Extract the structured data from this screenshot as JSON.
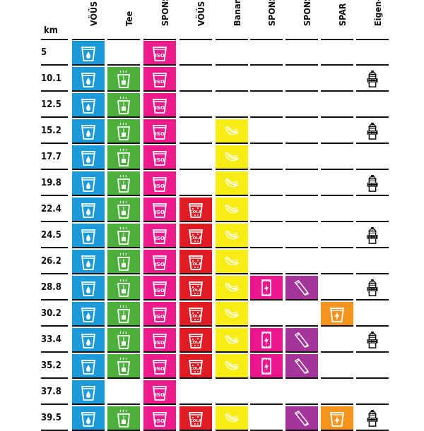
{
  "km_header": "km",
  "columns": [
    {
      "key": "wasser",
      "label": "VÖÜS Wasser",
      "color": "#1a9ad9",
      "icon": "water-cup-icon"
    },
    {
      "key": "tee",
      "label": "Tee",
      "color": "#4caf3c",
      "icon": "tea-cup-icon"
    },
    {
      "key": "iso",
      "label": "SPONSER ISO",
      "color": "#ee1b8d",
      "icon": "iso-cup-icon"
    },
    {
      "key": "cola",
      "label": "VÖÜS Cola",
      "color": "#e01b24",
      "icon": "cola-cup-icon"
    },
    {
      "key": "bananen",
      "label": "Bananen",
      "color": "#f7ed14",
      "icon": "banana-icon"
    },
    {
      "key": "riegel",
      "label": "SPONSOR Energieriegel",
      "color": "#ec168c",
      "icon": "energy-bar-icon"
    },
    {
      "key": "gel",
      "label": "SPONSOR Gel",
      "color": "#a5359b",
      "icon": "gel-tube-icon"
    },
    {
      "key": "spar",
      "label": "SPAR Energy",
      "color": "#f7941d",
      "icon": "energy-drink-icon"
    },
    {
      "key": "eigen",
      "label": "Eigen-Verpflegung",
      "color": "#ffffff",
      "icon": "own-bottle-icon"
    }
  ],
  "rows": [
    {
      "km": "5",
      "items": [
        "wasser",
        "iso"
      ]
    },
    {
      "km": "10.1",
      "items": [
        "wasser",
        "tee",
        "iso",
        "eigen"
      ]
    },
    {
      "km": "12.5",
      "items": [
        "wasser",
        "tee",
        "iso"
      ]
    },
    {
      "km": "15.2",
      "items": [
        "wasser",
        "tee",
        "iso",
        "bananen",
        "eigen"
      ]
    },
    {
      "km": "17.7",
      "items": [
        "wasser",
        "tee",
        "iso",
        "bananen"
      ]
    },
    {
      "km": "19.8",
      "items": [
        "wasser",
        "tee",
        "iso",
        "bananen",
        "eigen"
      ]
    },
    {
      "km": "22.4",
      "items": [
        "wasser",
        "tee",
        "iso",
        "cola",
        "bananen"
      ]
    },
    {
      "km": "24.5",
      "items": [
        "wasser",
        "tee",
        "iso",
        "cola",
        "bananen",
        "eigen"
      ]
    },
    {
      "km": "26.2",
      "items": [
        "wasser",
        "tee",
        "iso",
        "cola",
        "bananen"
      ]
    },
    {
      "km": "28.8",
      "items": [
        "wasser",
        "tee",
        "iso",
        "cola",
        "bananen",
        "riegel",
        "gel",
        "eigen"
      ]
    },
    {
      "km": "30.2",
      "items": [
        "wasser",
        "tee",
        "iso",
        "cola",
        "bananen",
        "spar"
      ]
    },
    {
      "km": "33.4",
      "items": [
        "wasser",
        "tee",
        "iso",
        "cola",
        "bananen",
        "riegel",
        "gel",
        "eigen"
      ]
    },
    {
      "km": "35.2",
      "items": [
        "wasser",
        "tee",
        "iso",
        "cola",
        "bananen",
        "riegel",
        "gel"
      ]
    },
    {
      "km": "37.8",
      "items": [
        "wasser",
        "iso"
      ]
    },
    {
      "km": "39.5",
      "items": [
        "wasser",
        "tee",
        "iso",
        "cola",
        "bananen",
        "gel",
        "spar",
        "eigen"
      ]
    }
  ]
}
